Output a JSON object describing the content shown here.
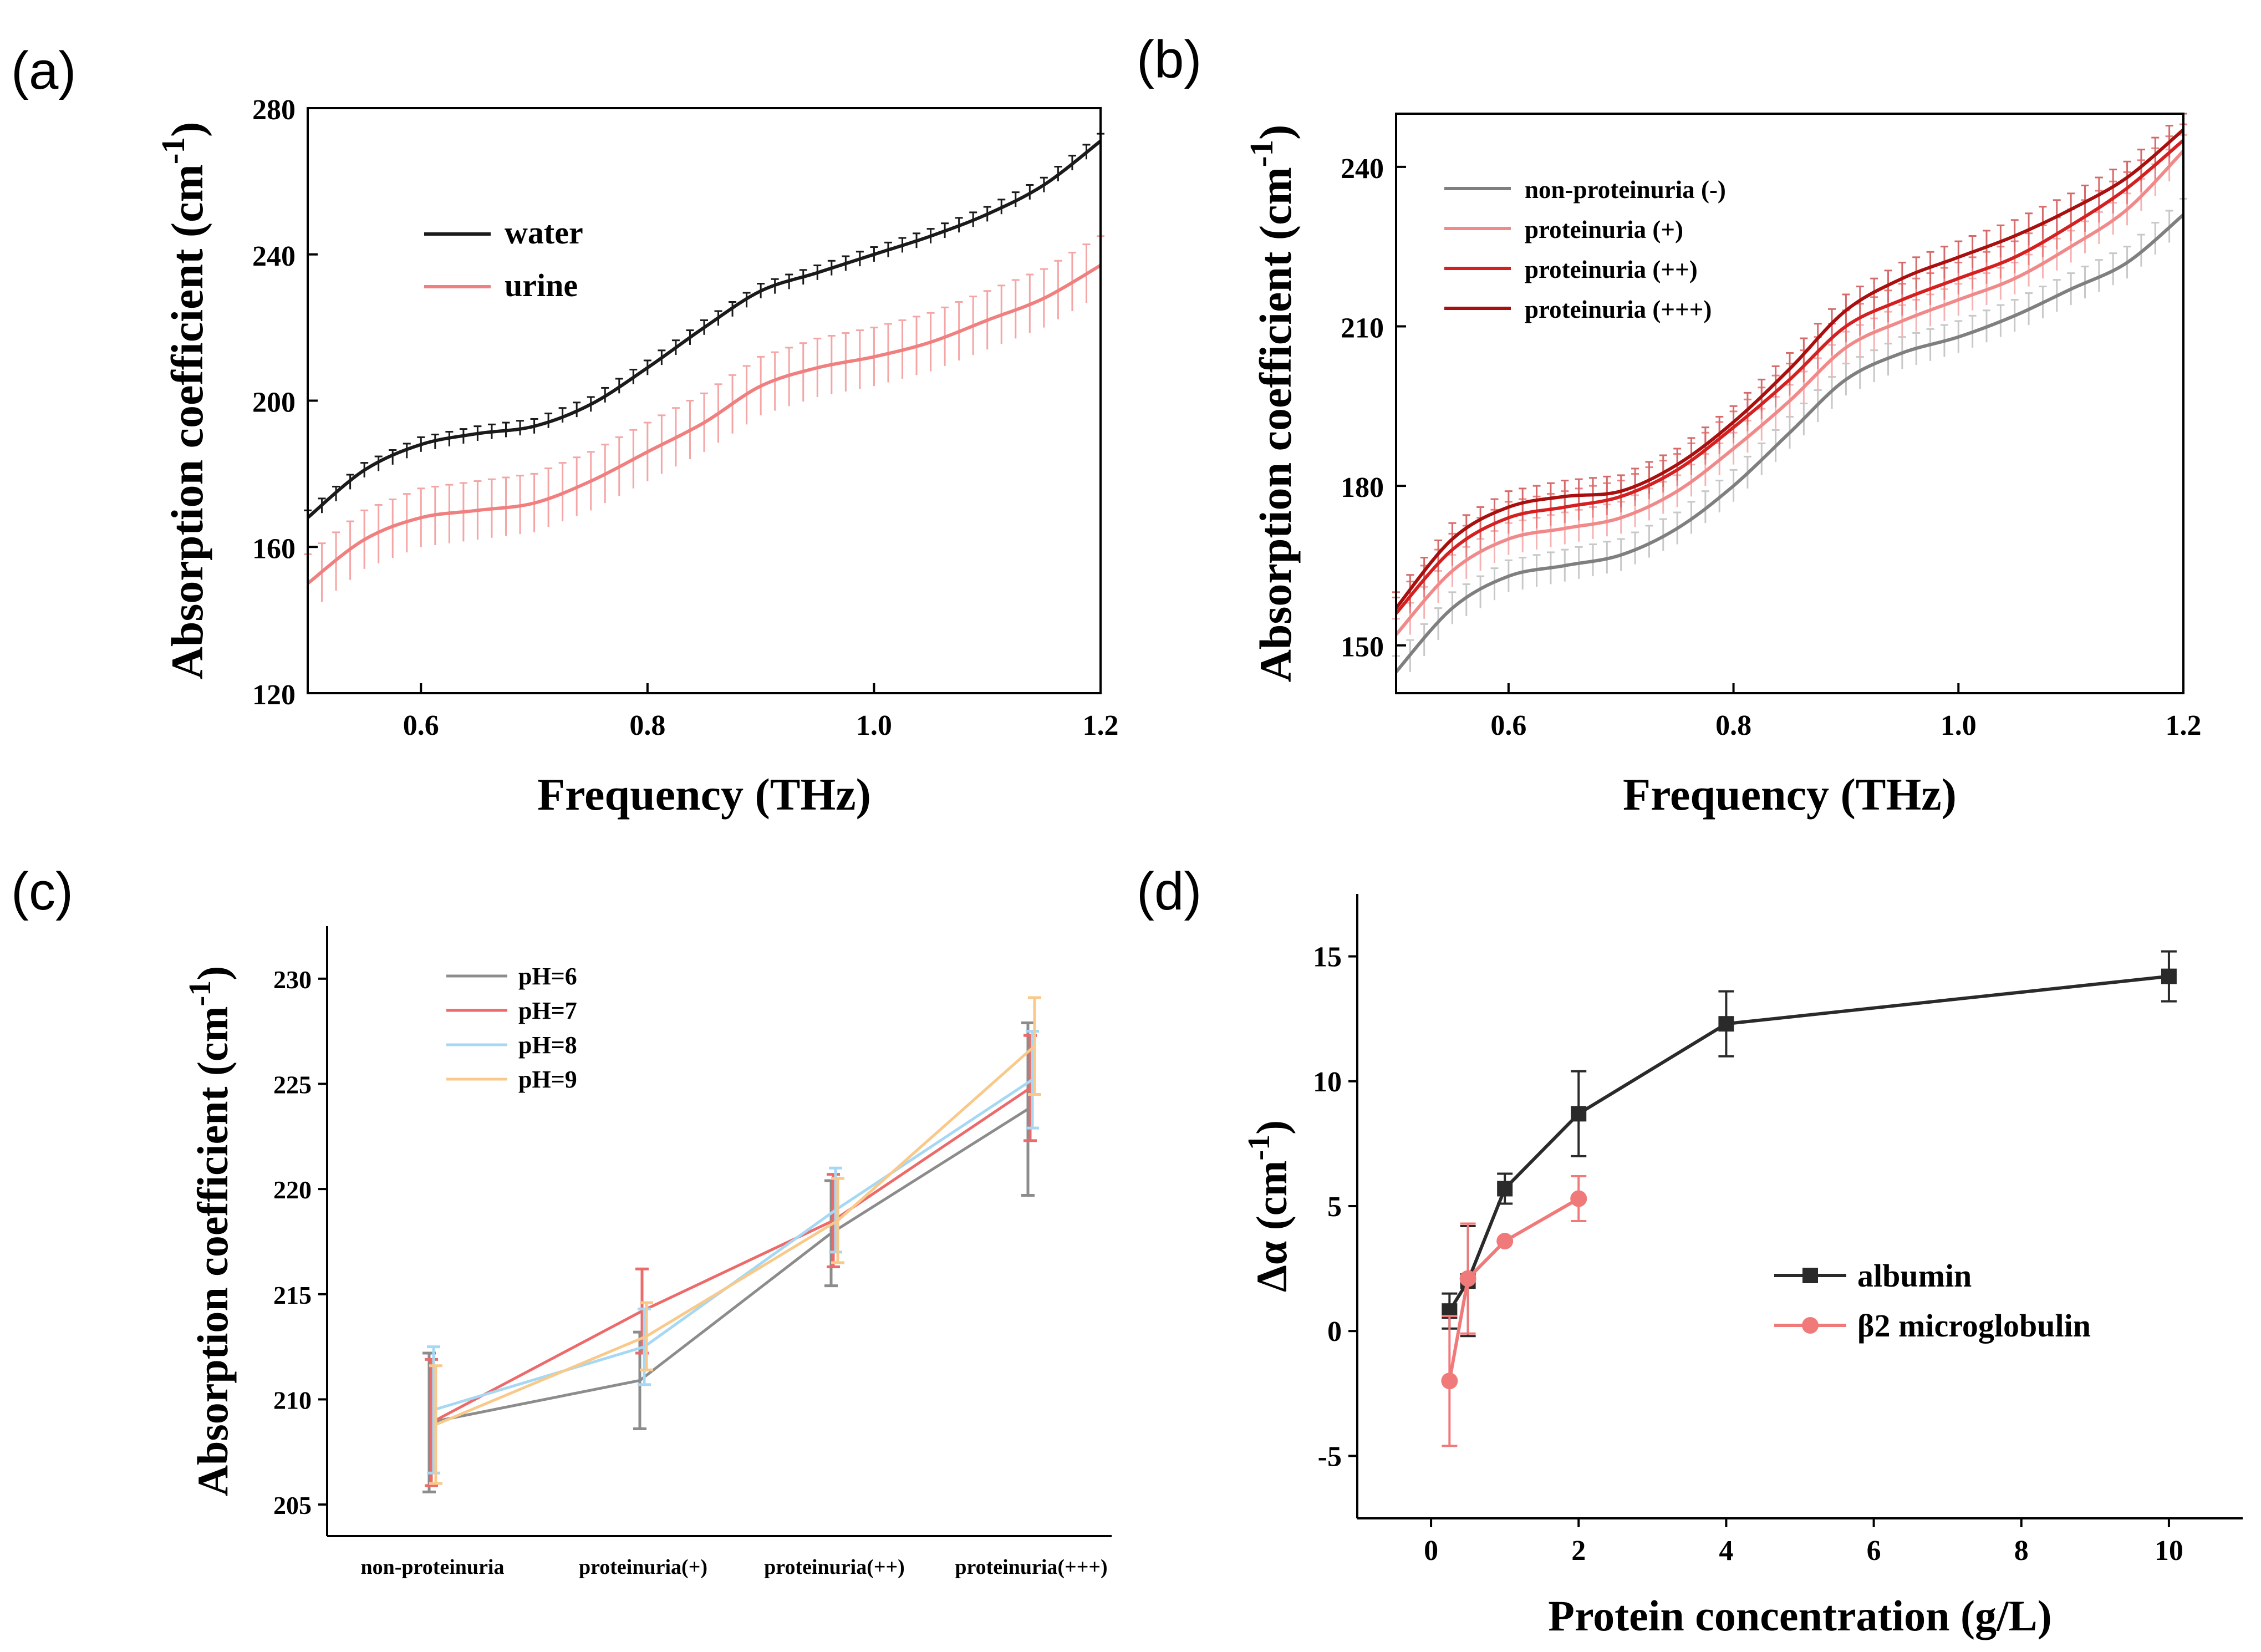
{
  "chart_data": [
    {
      "panel": "(a)",
      "type": "line",
      "xlabel": "Frequency (THz)",
      "ylabel_main": "Absorption coefficient (cm",
      "ylabel_sup": "-1",
      "ylabel_close": ")",
      "xlim": [
        0.5,
        1.2
      ],
      "ylim": [
        120,
        280
      ],
      "xticks": [
        "0.6",
        "0.8",
        "1.0",
        "1.2"
      ],
      "yticks": [
        "120",
        "160",
        "200",
        "240",
        "280"
      ],
      "series": [
        {
          "name": "water",
          "color": "#1a1a1a",
          "errcolor": "#1a1a1a",
          "err": 2,
          "x": [
            0.5,
            0.55,
            0.6,
            0.65,
            0.7,
            0.75,
            0.8,
            0.85,
            0.9,
            0.95,
            1.0,
            1.05,
            1.1,
            1.15,
            1.2
          ],
          "y": [
            168,
            181,
            188,
            191,
            193,
            199,
            209,
            220,
            230,
            235,
            240,
            245,
            251,
            259,
            271
          ]
        },
        {
          "name": "urine",
          "color": "#f07f7f",
          "errcolor": "#f4a6a6",
          "err": 8,
          "x": [
            0.5,
            0.55,
            0.6,
            0.65,
            0.7,
            0.75,
            0.8,
            0.85,
            0.9,
            0.95,
            1.0,
            1.05,
            1.1,
            1.15,
            1.2
          ],
          "y": [
            150,
            162,
            168,
            170,
            172,
            178,
            186,
            194,
            204,
            209,
            212,
            216,
            222,
            228,
            237
          ]
        }
      ]
    },
    {
      "panel": "(b)",
      "type": "line",
      "xlabel": "Frequency (THz)",
      "ylabel_main": "Absorption coefficient (cm",
      "ylabel_sup": "-1",
      "ylabel_close": ")",
      "xlim": [
        0.5,
        1.2
      ],
      "ylim": [
        141,
        250
      ],
      "xticks": [
        "0.6",
        "0.8",
        "1.0",
        "1.2"
      ],
      "yticks": [
        "150",
        "180",
        "210",
        "240"
      ],
      "series": [
        {
          "name": "non-proteinuria (-)",
          "color": "#7f7f7f",
          "errcolor": "#c8c8c8",
          "err": 3,
          "x": [
            0.5,
            0.55,
            0.6,
            0.65,
            0.7,
            0.75,
            0.8,
            0.85,
            0.9,
            0.95,
            1.0,
            1.05,
            1.1,
            1.15,
            1.2
          ],
          "y": [
            145,
            157,
            163,
            165,
            167,
            172,
            180,
            190,
            200,
            205,
            208,
            212,
            217,
            222,
            231
          ]
        },
        {
          "name": "proteinuria (+)",
          "color": "#f08a8a",
          "errcolor": "#f6b3b3",
          "err": 3,
          "x": [
            0.5,
            0.55,
            0.6,
            0.65,
            0.7,
            0.75,
            0.8,
            0.85,
            0.9,
            0.95,
            1.0,
            1.05,
            1.1,
            1.15,
            1.2
          ],
          "y": [
            152,
            164,
            170,
            172,
            174,
            179,
            187,
            196,
            206,
            211,
            215,
            219,
            225,
            232,
            243
          ]
        },
        {
          "name": "proteinuria (++)",
          "color": "#d42020",
          "errcolor": "#ea8080",
          "err": 3,
          "x": [
            0.5,
            0.55,
            0.6,
            0.65,
            0.7,
            0.75,
            0.8,
            0.85,
            0.9,
            0.95,
            1.0,
            1.05,
            1.1,
            1.15,
            1.2
          ],
          "y": [
            156,
            168,
            174,
            176,
            178,
            183,
            191,
            200,
            210,
            215,
            219,
            223,
            229,
            236,
            245
          ]
        },
        {
          "name": "proteinuria (+++)",
          "color": "#a80f0f",
          "errcolor": "#d66a6a",
          "err": 3,
          "x": [
            0.5,
            0.55,
            0.6,
            0.65,
            0.7,
            0.75,
            0.8,
            0.85,
            0.9,
            0.95,
            1.0,
            1.05,
            1.1,
            1.15,
            1.2
          ],
          "y": [
            157,
            170,
            176,
            178,
            179,
            184,
            192,
            202,
            213,
            219,
            223,
            227,
            232,
            238,
            247
          ]
        }
      ]
    },
    {
      "panel": "(c)",
      "type": "line",
      "xlabel": "",
      "ylabel_main": "Absorption coefficient (cm",
      "ylabel_sup": "-1",
      "ylabel_close": ")",
      "categories": [
        "non-proteinuria",
        "proteinuria(+)",
        "proteinuria(++)",
        "proteinuria(+++)"
      ],
      "ylim": [
        203.5,
        232.5
      ],
      "yticks": [
        "205",
        "210",
        "215",
        "220",
        "225",
        "230"
      ],
      "series": [
        {
          "name": "pH=6",
          "color": "#8c8c8c",
          "values": [
            208.9,
            210.9,
            217.9,
            223.8
          ],
          "errors": [
            3.3,
            2.3,
            2.5,
            4.1
          ]
        },
        {
          "name": "pH=7",
          "color": "#ec6a6a",
          "values": [
            208.9,
            214.2,
            218.5,
            224.8
          ],
          "errors": [
            3.0,
            2.0,
            2.2,
            2.5
          ]
        },
        {
          "name": "pH=8",
          "color": "#a6d8f4",
          "values": [
            209.5,
            212.5,
            219.0,
            225.2
          ],
          "errors": [
            3.0,
            1.8,
            2.0,
            2.3
          ]
        },
        {
          "name": "pH=9",
          "color": "#f9c98a",
          "values": [
            208.8,
            213.0,
            218.5,
            226.8
          ],
          "errors": [
            2.8,
            1.6,
            2.0,
            2.3
          ]
        }
      ]
    },
    {
      "panel": "(d)",
      "type": "line",
      "xlabel": "Protein concentration (g/L)",
      "ylabel_main": "Δα (cm",
      "ylabel_sup": "-1",
      "ylabel_close": ")",
      "xlim": [
        -1,
        11
      ],
      "ylim": [
        -7.5,
        17.5
      ],
      "xticks": [
        "0",
        "2",
        "4",
        "6",
        "8",
        "10"
      ],
      "yticks": [
        "-5",
        "0",
        "5",
        "10",
        "15"
      ],
      "series": [
        {
          "name": "albumin",
          "color": "#2a2a2a",
          "marker": "square",
          "x": [
            0.25,
            0.5,
            1,
            2,
            4,
            10
          ],
          "y": [
            0.8,
            2.0,
            5.7,
            8.7,
            12.3,
            14.2
          ],
          "errors": [
            0.7,
            2.2,
            0.6,
            1.7,
            1.3,
            1.0
          ]
        },
        {
          "name": "β2 microglobulin",
          "color": "#f07a7a",
          "marker": "circle",
          "x": [
            0.25,
            0.5,
            1,
            2
          ],
          "y": [
            -2.0,
            2.1,
            3.6,
            5.3
          ],
          "errors": [
            2.6,
            2.2,
            0.0,
            0.9
          ]
        }
      ]
    }
  ]
}
